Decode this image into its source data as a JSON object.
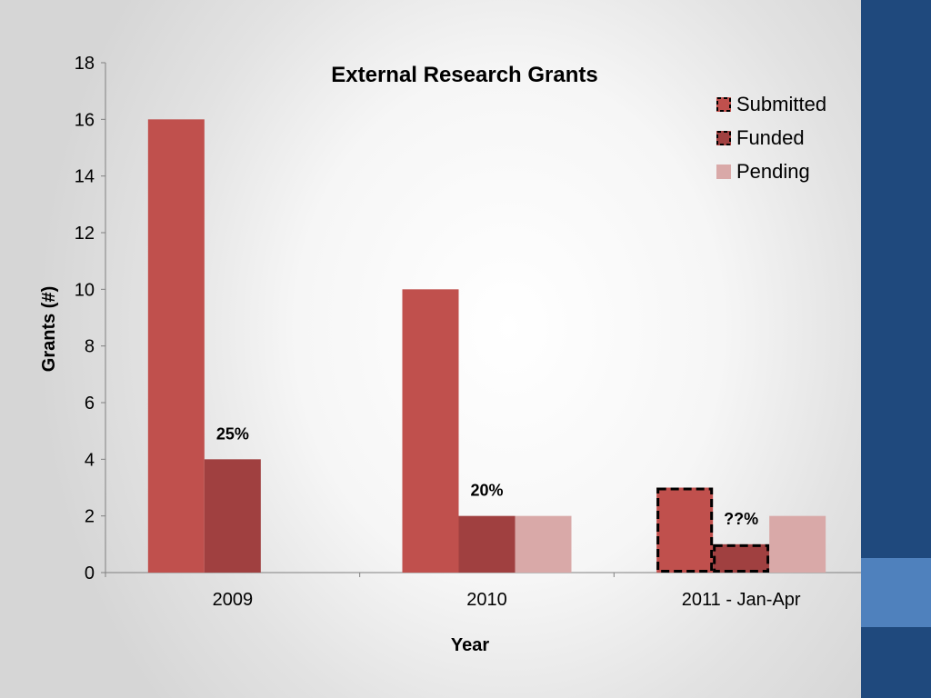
{
  "chart_data": {
    "type": "bar",
    "title": "External Research Grants",
    "xlabel": "Year",
    "ylabel": "Grants (#)",
    "categories": [
      "2009",
      "2010",
      "2011 - Jan-Apr"
    ],
    "ylim": [
      0,
      18
    ],
    "yticks": [
      0,
      2,
      4,
      6,
      8,
      10,
      12,
      14,
      16,
      18
    ],
    "grid": false,
    "legend_position": "top-right",
    "series": [
      {
        "name": "Submitted",
        "values": [
          16,
          10,
          3
        ],
        "color": "#c0504d",
        "dashed_outline_on": [
          "2011 - Jan-Apr"
        ]
      },
      {
        "name": "Funded",
        "values": [
          4,
          2,
          1
        ],
        "color": "#a04040",
        "dashed_outline_on": [
          "2011 - Jan-Apr"
        ]
      },
      {
        "name": "Pending",
        "values": [
          null,
          2,
          2
        ],
        "color": "#d9a9a8"
      }
    ],
    "annotations": [
      {
        "text": "25%",
        "category": "2009",
        "series": "Funded"
      },
      {
        "text": "20%",
        "category": "2010",
        "series": "Funded"
      },
      {
        "text": "??%",
        "category": "2011 - Jan-Apr",
        "series": "Funded"
      }
    ]
  }
}
